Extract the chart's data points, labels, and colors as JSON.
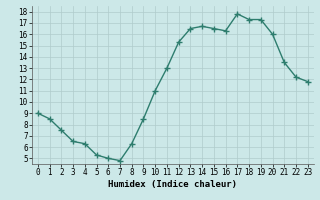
{
  "x": [
    0,
    1,
    2,
    3,
    4,
    5,
    6,
    7,
    8,
    9,
    10,
    11,
    12,
    13,
    14,
    15,
    16,
    17,
    18,
    19,
    20,
    21,
    22,
    23
  ],
  "y": [
    9,
    8.5,
    7.5,
    6.5,
    6.3,
    5.3,
    5.0,
    4.8,
    6.3,
    8.5,
    11.0,
    13.0,
    15.3,
    16.5,
    16.7,
    16.5,
    16.3,
    17.8,
    17.3,
    17.3,
    16.0,
    13.5,
    12.2,
    11.8
  ],
  "bg_color": "#cce8e8",
  "grid_major_color": "#b0cccc",
  "grid_minor_color": "#c8e0e0",
  "line_color": "#2e7d6e",
  "marker_color": "#2e7d6e",
  "xlabel": "Humidex (Indice chaleur)",
  "xlim": [
    -0.5,
    23.5
  ],
  "ylim": [
    4.5,
    18.5
  ],
  "yticks": [
    5,
    6,
    7,
    8,
    9,
    10,
    11,
    12,
    13,
    14,
    15,
    16,
    17,
    18
  ],
  "xtick_labels": [
    "0",
    "1",
    "2",
    "3",
    "4",
    "5",
    "6",
    "7",
    "8",
    "9",
    "10",
    "11",
    "12",
    "13",
    "14",
    "15",
    "16",
    "17",
    "18",
    "19",
    "20",
    "21",
    "22",
    "23"
  ],
  "tick_fontsize": 5.5,
  "xlabel_fontsize": 6.5
}
